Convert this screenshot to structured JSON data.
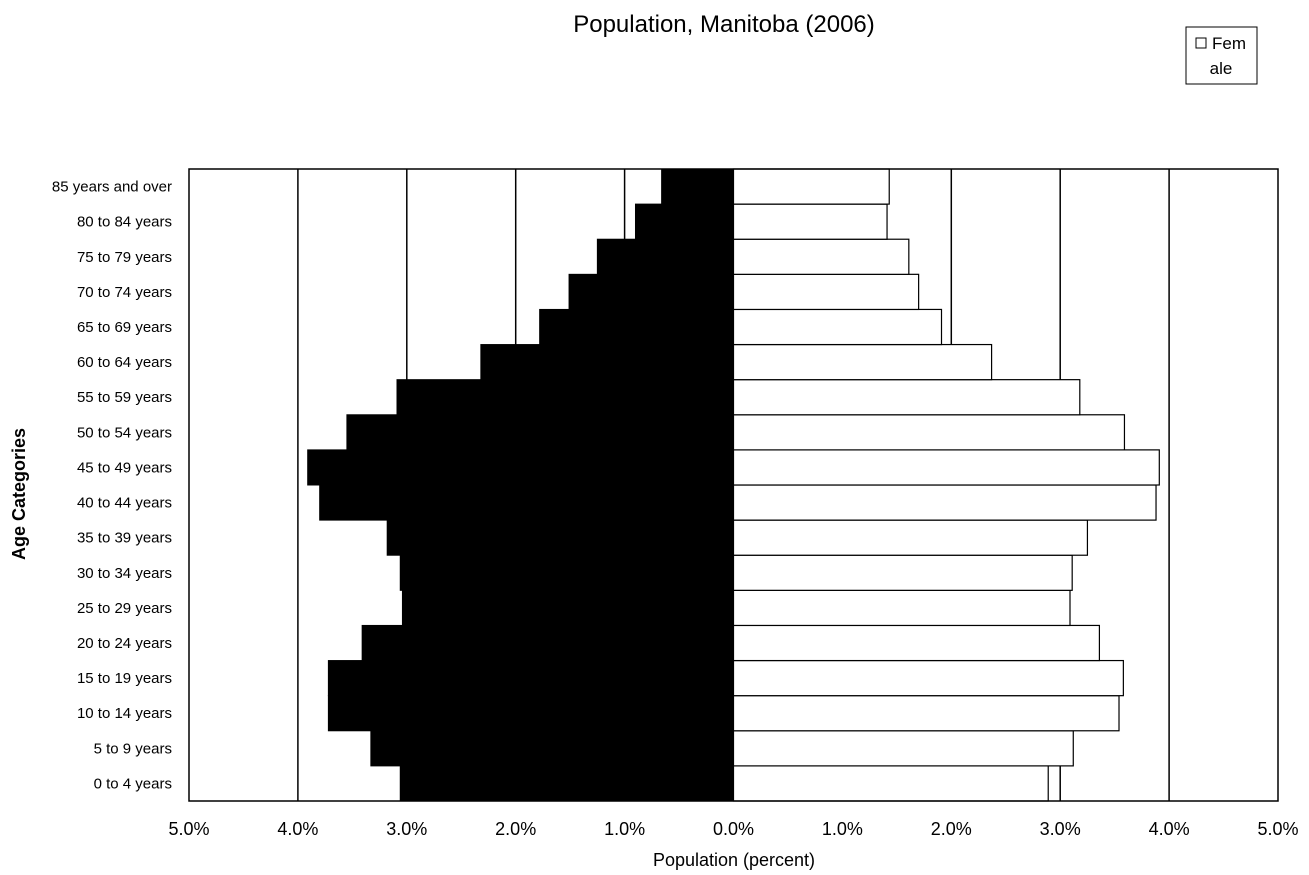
{
  "chart_data": {
    "type": "bar",
    "orientation": "horizontal",
    "title": "Population, Manitoba (2006)",
    "xlabel": "Population (percent)",
    "ylabel": "Age Categories",
    "xlim": [
      -5.0,
      5.0
    ],
    "x_tick_values": [
      -5,
      -4,
      -3,
      -2,
      -1,
      0,
      1,
      2,
      3,
      4,
      5
    ],
    "x_tick_labels": [
      "5.0%",
      "4.0%",
      "3.0%",
      "2.0%",
      "1.0%",
      "0.0%",
      "1.0%",
      "2.0%",
      "3.0%",
      "4.0%",
      "5.0%"
    ],
    "grid": true,
    "legend_position": "top-right",
    "legend": {
      "label_line1": "Fem",
      "label_line2": "ale"
    },
    "categories": [
      "0 to 4 years",
      "5 to 9 years",
      "10 to 14 years",
      "15 to 19 years",
      "20 to 24 years",
      "25 to 29 years",
      "30 to 34 years",
      "35 to 39 years",
      "40 to 44 years",
      "45 to 49 years",
      "50 to 54 years",
      "55 to 59 years",
      "60 to 64 years",
      "65 to 69 years",
      "70 to 74 years",
      "75 to 79 years",
      "80 to 84 years",
      "85 years and over"
    ],
    "series": [
      {
        "side": "left",
        "color": "#000000",
        "values": [
          3.06,
          3.33,
          3.72,
          3.72,
          3.41,
          3.04,
          3.06,
          3.18,
          3.8,
          3.91,
          3.55,
          3.09,
          2.32,
          1.78,
          1.51,
          1.25,
          0.9,
          0.66
        ]
      },
      {
        "name": "Female",
        "side": "right",
        "color": "#ffffff",
        "values": [
          2.89,
          3.12,
          3.54,
          3.58,
          3.36,
          3.09,
          3.11,
          3.25,
          3.88,
          3.91,
          3.59,
          3.18,
          2.37,
          1.91,
          1.7,
          1.61,
          1.41,
          1.43
        ]
      }
    ]
  }
}
